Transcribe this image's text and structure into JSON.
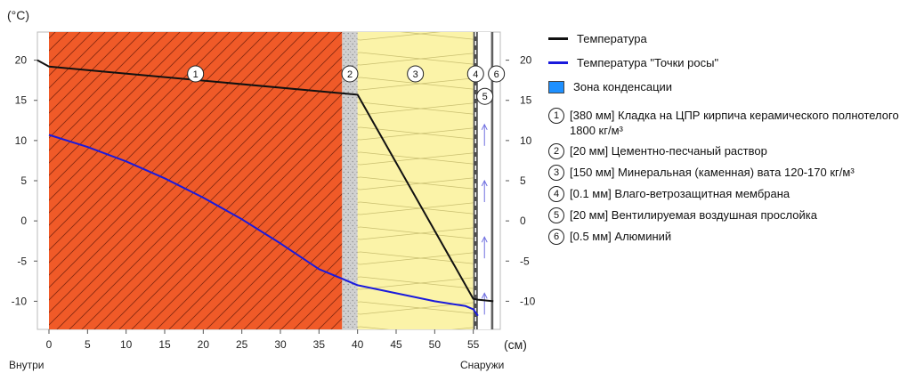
{
  "chart_data": {
    "type": "line",
    "y_unit": "(°C)",
    "x_unit": "(см)",
    "x_ticks": [
      0,
      5,
      10,
      15,
      20,
      25,
      30,
      35,
      40,
      45,
      50,
      55
    ],
    "y_ticks": [
      20,
      15,
      10,
      5,
      0,
      -5,
      -10
    ],
    "xlim": [
      -1.5,
      58.5
    ],
    "ylim": [
      -13.5,
      23.5
    ],
    "side_labels": {
      "inside": "Внутри",
      "outside": "Снаружи"
    },
    "layers": [
      {
        "number": "1",
        "x_start": 0,
        "x_end": 38,
        "fill": "#f05a28",
        "hatch": true
      },
      {
        "number": "2",
        "x_start": 38,
        "x_end": 40,
        "fill": "#d0d0d0",
        "dotted": true
      },
      {
        "number": "3",
        "x_start": 40,
        "x_end": 55,
        "fill": "#fbf3a8",
        "zigzag": true
      },
      {
        "number": "4",
        "x_start": 55,
        "x_end": 55.6,
        "fill": "#505050",
        "dashed": true
      },
      {
        "number": "5",
        "x_start": 55.6,
        "x_end": 57.3,
        "fill": "#ffffff",
        "arrows": true
      },
      {
        "number": "6",
        "x_start": 57.3,
        "x_end": 57.6,
        "fill": "#606060"
      }
    ],
    "series": [
      {
        "name": "Температура",
        "color": "#111111",
        "x": [
          -1.5,
          0,
          40,
          55,
          55.6,
          57.6
        ],
        "y": [
          20.0,
          19.2,
          15.7,
          -9.7,
          -9.8,
          -10.0
        ]
      },
      {
        "name": "Температура \"Точки росы\"",
        "color": "#1a1adc",
        "x": [
          0,
          5,
          10,
          15,
          20,
          25,
          30,
          35,
          38,
          40,
          45,
          50,
          54,
          55,
          55.6
        ],
        "y": [
          10.7,
          9.2,
          7.4,
          5.3,
          2.9,
          0.2,
          -2.8,
          -6.0,
          -7.2,
          -8.0,
          -9.0,
          -10.0,
          -10.6,
          -11.0,
          -11.8
        ]
      }
    ]
  },
  "legend": {
    "temperature": "Температура",
    "dew_point": "Температура \"Точки росы\"",
    "condensation": "Зона конденсации",
    "condensation_color": "#1e90ff"
  },
  "layers_legend": [
    {
      "num": "1",
      "text": "[380 мм] Кладка на ЦПР кирпича керамического полнотелого 1800 кг/м³"
    },
    {
      "num": "2",
      "text": "[20 мм] Цементно-песчаный раствор"
    },
    {
      "num": "3",
      "text": "[150 мм] Минеральная (каменная) вата 120-170 кг/м³"
    },
    {
      "num": "4",
      "text": "[0.1 мм] Влаго-ветрозащитная мембрана"
    },
    {
      "num": "5",
      "text": "[20 мм] Вентилируемая воздушная прослойка"
    },
    {
      "num": "6",
      "text": "[0.5 мм] Алюминий"
    }
  ]
}
